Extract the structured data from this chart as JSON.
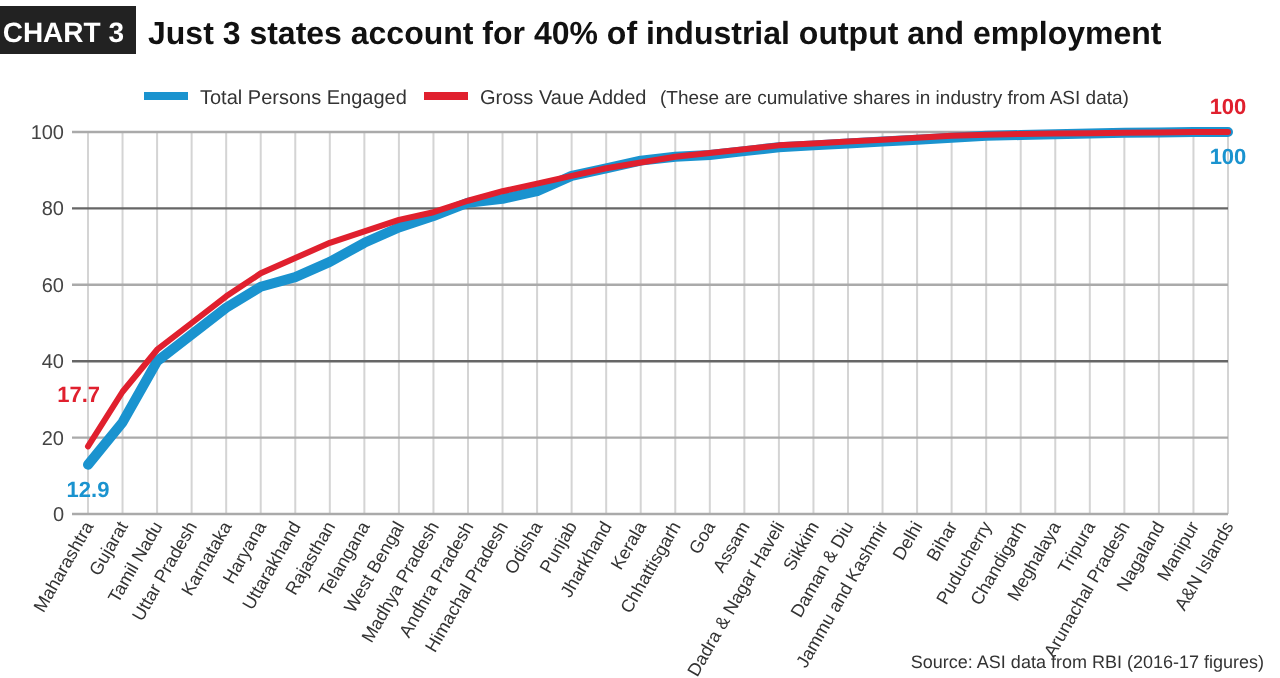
{
  "chart_data": {
    "type": "line",
    "title": "Just 3 states account for 40% of industrial output and employment",
    "annotations": [
      "CHART 3",
      "(These are cumulative shares in industry from ASI data)",
      "Source: ASI data from RBI (2016-17 figures)"
    ],
    "categories": [
      "Maharashtra",
      "Gujarat",
      "Tamil Nadu",
      "Uttar Pradesh",
      "Karnataka",
      "Haryana",
      "Uttarakhand",
      "Rajasthan",
      "Telangana",
      "West Bengal",
      "Madhya Pradesh",
      "Andhra Pradesh",
      "Himachal Pradesh",
      "Odisha",
      "Punjab",
      "Jharkhand",
      "Kerala",
      "Chhattisgarh",
      "Goa",
      "Assam",
      "Dadra & Nagar Haveli",
      "Sikkim",
      "Daman & Diu",
      "Jammu and Kashmir",
      "Delhi",
      "Bihar",
      "Puducherry",
      "Chandigarh",
      "Meghalaya",
      "Tripura",
      "Arunachal Pradesh",
      "Nagaland",
      "Manipur",
      "A&N Islands"
    ],
    "series": [
      {
        "name": "Total Persons Engaged",
        "color": "#1a93cf",
        "values": [
          12.9,
          24,
          40,
          47,
          54,
          59.5,
          62,
          66,
          71,
          75,
          78,
          81.5,
          82.5,
          84.5,
          88.5,
          90.5,
          92.5,
          93.5,
          94,
          95,
          96,
          96.5,
          97,
          97.5,
          98,
          98.5,
          99,
          99.2,
          99.4,
          99.6,
          99.8,
          99.9,
          100,
          100
        ],
        "value_labels": [
          "12.9",
          null,
          null,
          null,
          null,
          null,
          null,
          null,
          null,
          null,
          null,
          null,
          null,
          null,
          null,
          null,
          null,
          null,
          null,
          null,
          null,
          null,
          null,
          null,
          null,
          null,
          null,
          null,
          null,
          null,
          null,
          null,
          null,
          "100"
        ]
      },
      {
        "name": "Gross Vaue Added",
        "color": "#e0202e",
        "values": [
          17.7,
          32,
          43,
          50,
          57,
          63,
          67,
          71,
          74,
          77,
          79,
          82,
          84.5,
          86.5,
          88.5,
          90.5,
          92,
          93.5,
          94.5,
          95.5,
          96.5,
          97,
          97.5,
          98,
          98.5,
          99,
          99.3,
          99.5,
          99.6,
          99.7,
          99.8,
          99.9,
          100,
          100
        ],
        "value_labels": [
          "17.7",
          null,
          null,
          null,
          null,
          null,
          null,
          null,
          null,
          null,
          null,
          null,
          null,
          null,
          null,
          null,
          null,
          null,
          null,
          null,
          null,
          null,
          null,
          null,
          null,
          null,
          null,
          null,
          null,
          null,
          null,
          null,
          null,
          "100"
        ]
      }
    ],
    "ylim": [
      0,
      100
    ],
    "yticks": [
      0,
      20,
      40,
      60,
      80,
      100
    ],
    "grid": true,
    "legend": "top left",
    "marker": "none",
    "line_style": "solid"
  }
}
